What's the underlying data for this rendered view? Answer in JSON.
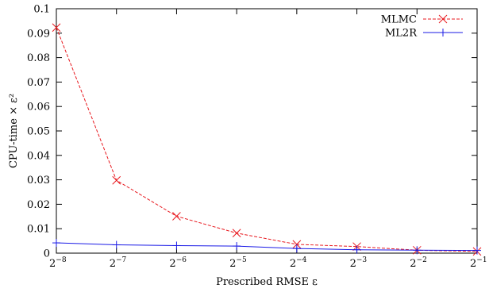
{
  "chart_data": {
    "type": "line",
    "xlabel": "Prescribed RMSE ε",
    "ylabel": "CPU-time × ε²",
    "x_scale": "log2",
    "xlim": [
      0.00390625,
      0.5
    ],
    "ylim": [
      0,
      0.1
    ],
    "grid": false,
    "legend_position": "top-right",
    "x_ticks": [
      {
        "value": 0.00390625,
        "base": "2",
        "exp": "−8"
      },
      {
        "value": 0.0078125,
        "base": "2",
        "exp": "−7"
      },
      {
        "value": 0.015625,
        "base": "2",
        "exp": "−6"
      },
      {
        "value": 0.03125,
        "base": "2",
        "exp": "−5"
      },
      {
        "value": 0.0625,
        "base": "2",
        "exp": "−4"
      },
      {
        "value": 0.125,
        "base": "2",
        "exp": "−3"
      },
      {
        "value": 0.25,
        "base": "2",
        "exp": "−2"
      },
      {
        "value": 0.5,
        "base": "2",
        "exp": "−1"
      }
    ],
    "y_ticks": [
      {
        "value": 0,
        "label": "0"
      },
      {
        "value": 0.01,
        "label": "0.01"
      },
      {
        "value": 0.02,
        "label": "0.02"
      },
      {
        "value": 0.03,
        "label": "0.03"
      },
      {
        "value": 0.04,
        "label": "0.04"
      },
      {
        "value": 0.05,
        "label": "0.05"
      },
      {
        "value": 0.06,
        "label": "0.06"
      },
      {
        "value": 0.07,
        "label": "0.07"
      },
      {
        "value": 0.08,
        "label": "0.08"
      },
      {
        "value": 0.09,
        "label": "0.09"
      },
      {
        "value": 0.1,
        "label": "0.1"
      }
    ],
    "x": [
      0.00390625,
      0.0078125,
      0.015625,
      0.03125,
      0.0625,
      0.125,
      0.25,
      0.5
    ],
    "series": [
      {
        "name": "MLMC",
        "color": "#e8191f",
        "dash": "dashed",
        "marker": "x-cross",
        "values": [
          0.0923,
          0.0298,
          0.0151,
          0.0082,
          0.0036,
          0.0027,
          0.0012,
          0.0007
        ]
      },
      {
        "name": "ML2R",
        "color": "#1a1ae6",
        "dash": "solid",
        "marker": "plus",
        "values": [
          0.0042,
          0.0034,
          0.0031,
          0.0029,
          0.0019,
          0.0014,
          0.0012,
          0.0011
        ]
      }
    ]
  }
}
